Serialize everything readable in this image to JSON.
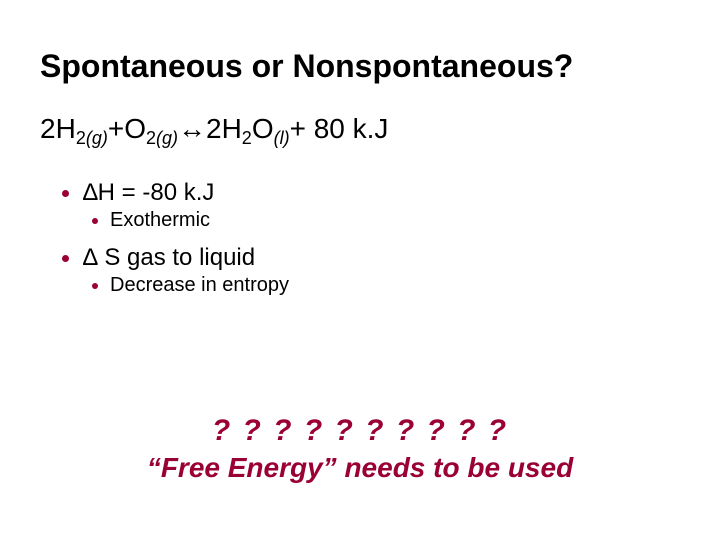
{
  "colors": {
    "background": "#ffffff",
    "text": "#000000",
    "accent": "#9a0033"
  },
  "title": "Spontaneous or Nonspontaneous?",
  "equation": {
    "lhs1_coef": "2",
    "lhs1_species": "H",
    "lhs1_sub": "2",
    "lhs1_phase": "(g)",
    "plus1": " + ",
    "lhs2_species": "O",
    "lhs2_sub": "2",
    "lhs2_phase": "(g)",
    "arrow": " ↔ ",
    "rhs_coef": "2",
    "rhs_species1": "H",
    "rhs_sub1": "2",
    "rhs_species2": "O",
    "rhs_phase": "(l)",
    "tail": " + 80 k.J"
  },
  "bullets": {
    "dH": "∆H = -80 k.J",
    "dH_note": "Exothermic",
    "dS": "∆ S gas to liquid",
    "dS_note": "Decrease in entropy"
  },
  "footer": {
    "qmarks": "? ? ? ? ? ? ? ? ? ?",
    "line": "“Free Energy” needs to be used"
  }
}
